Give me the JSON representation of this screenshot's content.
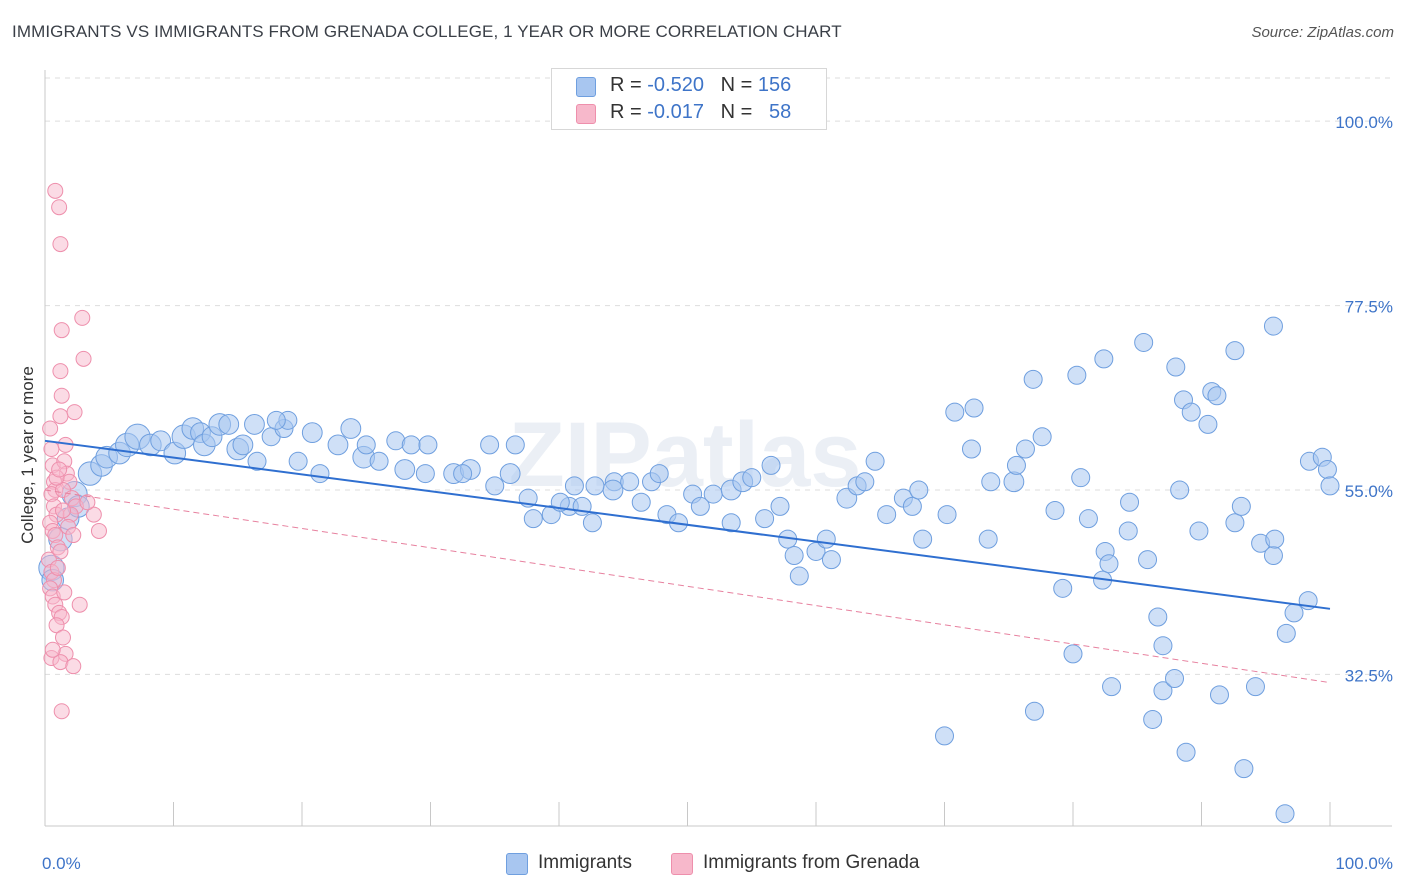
{
  "title": "IMMIGRANTS VS IMMIGRANTS FROM GRENADA COLLEGE, 1 YEAR OR MORE CORRELATION CHART",
  "source": "Source: ZipAtlas.com",
  "watermark": "ZIPatlas",
  "legend": {
    "rows": [
      {
        "r_label": "R =",
        "r_value": "-0.520",
        "n_label": "N =",
        "n_value": "156",
        "color": "#a8c6f0"
      },
      {
        "r_label": "R =",
        "r_value": "-0.017",
        "n_label": "N =",
        "n_value": "58",
        "color": "#f7b8cb"
      }
    ]
  },
  "bottom_legend": [
    {
      "label": "Immigrants",
      "color": "#a8c6f0"
    },
    {
      "label": "Immigrants from Grenada",
      "color": "#f7b8cb"
    }
  ],
  "colors": {
    "blue_fill": "#a8c6f0",
    "blue_stroke": "#6f9fdf",
    "blue_line": "#2f6fd0",
    "pink_fill": "#f7b8cb",
    "pink_stroke": "#ee8fac",
    "pink_line": "#e7819f",
    "tick_label": "#3e74c8",
    "grid": "#dddddd"
  },
  "chart_data": {
    "type": "scatter",
    "title": "IMMIGRANTS VS IMMIGRANTS FROM GRENADA COLLEGE, 1 YEAR OR MORE CORRELATION CHART",
    "xlabel": "",
    "ylabel": "College, 1 year or more",
    "xlim": [
      0,
      100
    ],
    "ylim": [
      14,
      106
    ],
    "x_tick_labels": [
      "0.0%",
      "100.0%"
    ],
    "y_ticks": [
      32.5,
      55.0,
      77.5,
      100.0
    ],
    "y_tick_labels": [
      "32.5%",
      "55.0%",
      "77.5%",
      "100.0%"
    ],
    "grid": "horizontal-dashed",
    "legend_position": "top-center",
    "series": [
      {
        "name": "Immigrants",
        "trend": {
          "x": [
            0,
            100
          ],
          "y": [
            61.0,
            40.5
          ],
          "style": "solid"
        },
        "points": [
          [
            0.5,
            45.5,
            14
          ],
          [
            0.6,
            44,
            12
          ],
          [
            1.2,
            49,
            13
          ],
          [
            1.8,
            51.5,
            12
          ],
          [
            2.3,
            54.5,
            14
          ],
          [
            2.6,
            53,
            12
          ],
          [
            3.5,
            57,
            13
          ],
          [
            4.4,
            58,
            12
          ],
          [
            4.8,
            59,
            12
          ],
          [
            5.8,
            59.5,
            12
          ],
          [
            6.4,
            60.5,
            13
          ],
          [
            7.2,
            61.5,
            14
          ],
          [
            8.2,
            60.5,
            12
          ],
          [
            9.0,
            61,
            11
          ],
          [
            10.1,
            59.5,
            12
          ],
          [
            10.8,
            61.5,
            13
          ],
          [
            11.5,
            62.5,
            12
          ],
          [
            12.1,
            62,
            11
          ],
          [
            12.4,
            60.5,
            12
          ],
          [
            13.0,
            61.5,
            11
          ],
          [
            13.6,
            63,
            12
          ],
          [
            14.3,
            63,
            11
          ],
          [
            15.0,
            60,
            12
          ],
          [
            15.4,
            60.5,
            11
          ],
          [
            16.5,
            58.5,
            10
          ],
          [
            17.6,
            61.5,
            10
          ],
          [
            18.6,
            62.5,
            10
          ],
          [
            18.9,
            63.5,
            10
          ],
          [
            18.0,
            63.5,
            10
          ],
          [
            16.3,
            63,
            11
          ],
          [
            19.7,
            58.5,
            10
          ],
          [
            20.8,
            62,
            11
          ],
          [
            21.4,
            57,
            10
          ],
          [
            22.8,
            60.5,
            11
          ],
          [
            24.8,
            59,
            12
          ],
          [
            23.8,
            62.5,
            11
          ],
          [
            25.0,
            60.5,
            10
          ],
          [
            26.0,
            58.5,
            10
          ],
          [
            27.3,
            61,
            10
          ],
          [
            28.5,
            60.5,
            10
          ],
          [
            29.8,
            60.5,
            10
          ],
          [
            28.0,
            57.5,
            11
          ],
          [
            29.6,
            57,
            10
          ],
          [
            31.8,
            57,
            11
          ],
          [
            33.1,
            57.5,
            11
          ],
          [
            35.0,
            55.5,
            10
          ],
          [
            36.2,
            57,
            11
          ],
          [
            36.6,
            60.5,
            10
          ],
          [
            34.6,
            60.5,
            10
          ],
          [
            37.6,
            54,
            10
          ],
          [
            39.4,
            52,
            10
          ],
          [
            38.0,
            51.5,
            10
          ],
          [
            40.8,
            53,
            10
          ],
          [
            41.2,
            55.5,
            10
          ],
          [
            41.8,
            53,
            10
          ],
          [
            42.6,
            51,
            10
          ],
          [
            44.3,
            56,
            10
          ],
          [
            44.2,
            55,
            11
          ],
          [
            45.5,
            56,
            10
          ],
          [
            46.4,
            53.5,
            10
          ],
          [
            47.2,
            56,
            10
          ],
          [
            48.4,
            52,
            10
          ],
          [
            49.3,
            51,
            10
          ],
          [
            50.4,
            54.5,
            10
          ],
          [
            51.0,
            53,
            10
          ],
          [
            52.0,
            54.5,
            10
          ],
          [
            53.4,
            55,
            11
          ],
          [
            54.3,
            56,
            11
          ],
          [
            55.0,
            56.5,
            10
          ],
          [
            56.0,
            51.5,
            10
          ],
          [
            57.2,
            53,
            10
          ],
          [
            57.8,
            49,
            10
          ],
          [
            58.3,
            47,
            10
          ],
          [
            60.0,
            47.5,
            10
          ],
          [
            60.8,
            49,
            10
          ],
          [
            61.2,
            46.5,
            10
          ],
          [
            62.4,
            54,
            11
          ],
          [
            63.2,
            55.5,
            10
          ],
          [
            64.6,
            58.5,
            10
          ],
          [
            66.8,
            54,
            10
          ],
          [
            67.5,
            53,
            10
          ],
          [
            68.0,
            55,
            10
          ],
          [
            68.3,
            49,
            10
          ],
          [
            70.2,
            52,
            10
          ],
          [
            72.1,
            60,
            10
          ],
          [
            72.3,
            65,
            10
          ],
          [
            73.4,
            49,
            10
          ],
          [
            75.4,
            56,
            11
          ],
          [
            75.6,
            58,
            10
          ],
          [
            76.3,
            60,
            10
          ],
          [
            77.6,
            61.5,
            10
          ],
          [
            78.6,
            52.5,
            10
          ],
          [
            79.2,
            43,
            10
          ],
          [
            80.6,
            56.5,
            10
          ],
          [
            81.2,
            51.5,
            10
          ],
          [
            82.5,
            47.5,
            10
          ],
          [
            82.8,
            46,
            10
          ],
          [
            82.3,
            44,
            10
          ],
          [
            84.3,
            50,
            10
          ],
          [
            84.4,
            53.5,
            10
          ],
          [
            85.8,
            46.5,
            10
          ],
          [
            86.6,
            39.5,
            10
          ],
          [
            87.0,
            36,
            10
          ],
          [
            88.3,
            55,
            10
          ],
          [
            88.6,
            66,
            10
          ],
          [
            89.2,
            64.5,
            10
          ],
          [
            89.8,
            50,
            10
          ],
          [
            90.5,
            63,
            10
          ],
          [
            90.8,
            67,
            10
          ],
          [
            91.2,
            66.5,
            10
          ],
          [
            92.6,
            51,
            10
          ],
          [
            93.1,
            53,
            10
          ],
          [
            94.6,
            48.5,
            10
          ],
          [
            95.6,
            47,
            10
          ],
          [
            95.7,
            49,
            10
          ],
          [
            96.6,
            37.5,
            10
          ],
          [
            97.2,
            40,
            10
          ],
          [
            98.3,
            41.5,
            10
          ],
          [
            98.4,
            58.5,
            10
          ],
          [
            99.4,
            59,
            10
          ],
          [
            99.8,
            57.5,
            10
          ],
          [
            100.0,
            55.5,
            10
          ],
          [
            40.1,
            53.5,
            10
          ],
          [
            32.5,
            57,
            10
          ],
          [
            42.8,
            55.5,
            10
          ],
          [
            47.8,
            57,
            10
          ],
          [
            53.4,
            51,
            10
          ],
          [
            56.5,
            58,
            10
          ],
          [
            58.7,
            44.5,
            10
          ],
          [
            63.8,
            56,
            10
          ],
          [
            65.5,
            52,
            10
          ],
          [
            70.8,
            64.5,
            10
          ],
          [
            73.6,
            56,
            10
          ],
          [
            76.9,
            68.5,
            10
          ],
          [
            80.3,
            69,
            10
          ],
          [
            82.4,
            71,
            10
          ],
          [
            85.5,
            73,
            10
          ],
          [
            88.0,
            70,
            10
          ],
          [
            92.6,
            72,
            10
          ],
          [
            95.6,
            75,
            10
          ],
          [
            80.0,
            35,
            10
          ],
          [
            83.0,
            31,
            10
          ],
          [
            87.0,
            30.5,
            10
          ],
          [
            87.9,
            32,
            10
          ],
          [
            91.4,
            30,
            10
          ],
          [
            94.2,
            31,
            10
          ],
          [
            88.8,
            23,
            10
          ],
          [
            93.3,
            21,
            10
          ],
          [
            96.5,
            15.5,
            10
          ],
          [
            86.2,
            27,
            10
          ],
          [
            77.0,
            28,
            10
          ],
          [
            70.0,
            25,
            10
          ]
        ]
      },
      {
        "name": "Immigrants from Grenada",
        "trend": {
          "x": [
            0,
            100
          ],
          "y": [
            55.0,
            31.5
          ],
          "style": "dashed"
        },
        "points": [
          [
            0.4,
            62.5
          ],
          [
            0.5,
            60
          ],
          [
            0.6,
            58
          ],
          [
            0.7,
            56
          ],
          [
            0.8,
            55
          ],
          [
            0.5,
            54.5
          ],
          [
            0.7,
            53
          ],
          [
            0.9,
            52
          ],
          [
            0.4,
            51
          ],
          [
            0.6,
            50
          ],
          [
            0.8,
            49.5
          ],
          [
            1.0,
            48
          ],
          [
            1.2,
            47.5
          ],
          [
            0.3,
            46.5
          ],
          [
            0.5,
            45
          ],
          [
            0.7,
            44
          ],
          [
            0.4,
            43
          ],
          [
            0.6,
            42
          ],
          [
            0.8,
            41
          ],
          [
            1.1,
            40
          ],
          [
            1.3,
            39.5
          ],
          [
            0.9,
            38.5
          ],
          [
            1.4,
            37
          ],
          [
            1.6,
            35
          ],
          [
            0.5,
            34.5
          ],
          [
            1.2,
            34
          ],
          [
            2.2,
            33.5
          ],
          [
            1.3,
            28
          ],
          [
            1.5,
            58.5
          ],
          [
            1.7,
            57
          ],
          [
            1.9,
            56
          ],
          [
            1.4,
            55
          ],
          [
            2.1,
            54
          ],
          [
            2.4,
            53
          ],
          [
            2.0,
            52
          ],
          [
            1.8,
            50.5
          ],
          [
            2.2,
            49.5
          ],
          [
            1.6,
            60.5
          ],
          [
            1.2,
            64
          ],
          [
            1.3,
            66.5
          ],
          [
            2.3,
            64.5
          ],
          [
            1.2,
            69.5
          ],
          [
            3.0,
            71
          ],
          [
            1.3,
            74.5
          ],
          [
            2.9,
            76
          ],
          [
            1.2,
            85
          ],
          [
            1.1,
            89.5
          ],
          [
            0.8,
            91.5
          ],
          [
            3.8,
            52
          ],
          [
            3.3,
            53.5
          ],
          [
            4.2,
            50
          ],
          [
            0.9,
            56.5
          ],
          [
            1.1,
            57.5
          ],
          [
            1.4,
            52.5
          ],
          [
            1.0,
            45.5
          ],
          [
            2.7,
            41
          ],
          [
            0.6,
            35.5
          ],
          [
            1.5,
            42.5
          ]
        ]
      }
    ]
  }
}
